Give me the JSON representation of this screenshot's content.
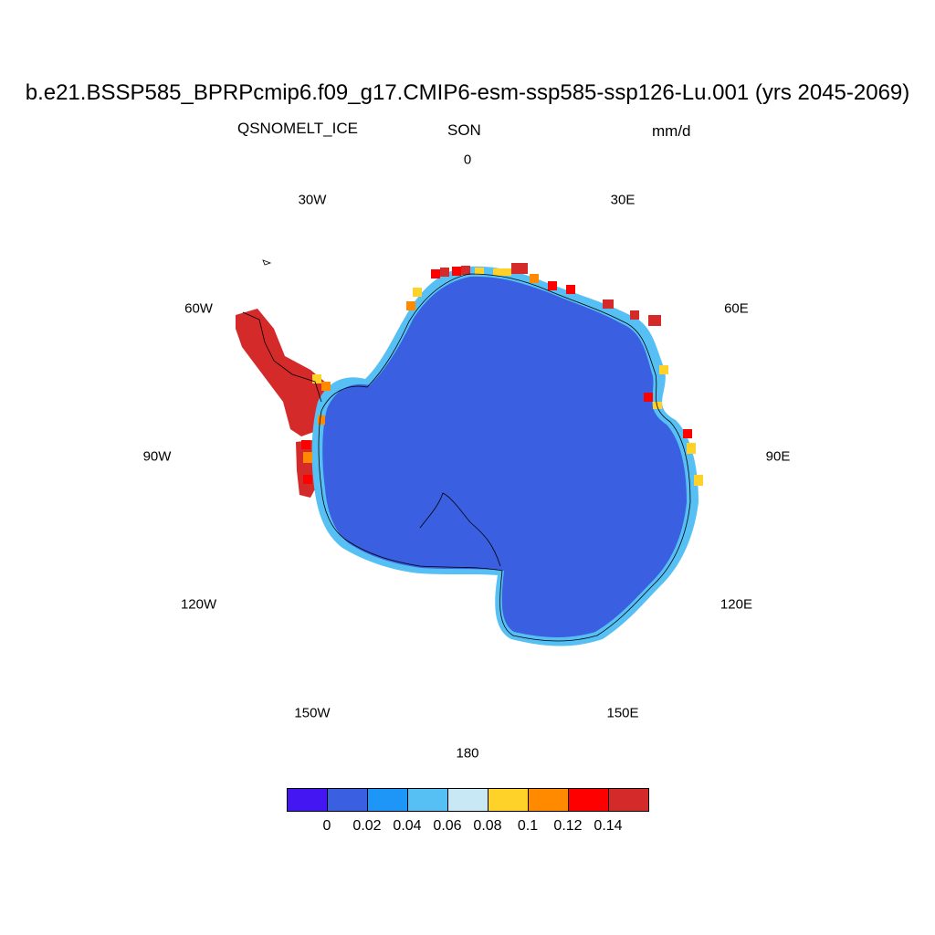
{
  "title": "b.e21.BSSP585_BPRPcmip6.f09_g17.CMIP6-esm-ssp585-ssp126-Lu.001 (yrs 2045-2069)",
  "variable": "QSNOMELT_ICE",
  "season": "SON",
  "units": "mm/d",
  "longitude_labels": [
    {
      "name": "lon-0",
      "text": "0",
      "lon": 0
    },
    {
      "name": "lon-30e",
      "text": "30E",
      "lon": 30
    },
    {
      "name": "lon-60e",
      "text": "60E",
      "lon": 60
    },
    {
      "name": "lon-90e",
      "text": "90E",
      "lon": 90
    },
    {
      "name": "lon-120e",
      "text": "120E",
      "lon": 120
    },
    {
      "name": "lon-150e",
      "text": "150E",
      "lon": 150
    },
    {
      "name": "lon-180",
      "text": "180",
      "lon": 180
    },
    {
      "name": "lon-150w",
      "text": "150W",
      "lon": -150
    },
    {
      "name": "lon-120w",
      "text": "120W",
      "lon": -120
    },
    {
      "name": "lon-90w",
      "text": "90W",
      "lon": -90
    },
    {
      "name": "lon-60w",
      "text": "60W",
      "lon": -60
    },
    {
      "name": "lon-30w",
      "text": "30W",
      "lon": -30
    }
  ],
  "colorbar": {
    "colors": [
      "#4416f2",
      "#3a5fe0",
      "#1d96f8",
      "#56c0f5",
      "#c8e8f5",
      "#ffd22a",
      "#ff8a00",
      "#ff0000",
      "#d42a2a"
    ],
    "labels": [
      "0",
      "0.02",
      "0.04",
      "0.06",
      "0.08",
      "0.1",
      "0.12",
      "0.14"
    ]
  },
  "colors": {
    "ice_interior": "#3a5fe0",
    "peninsula_melt": "#d42a2a"
  }
}
